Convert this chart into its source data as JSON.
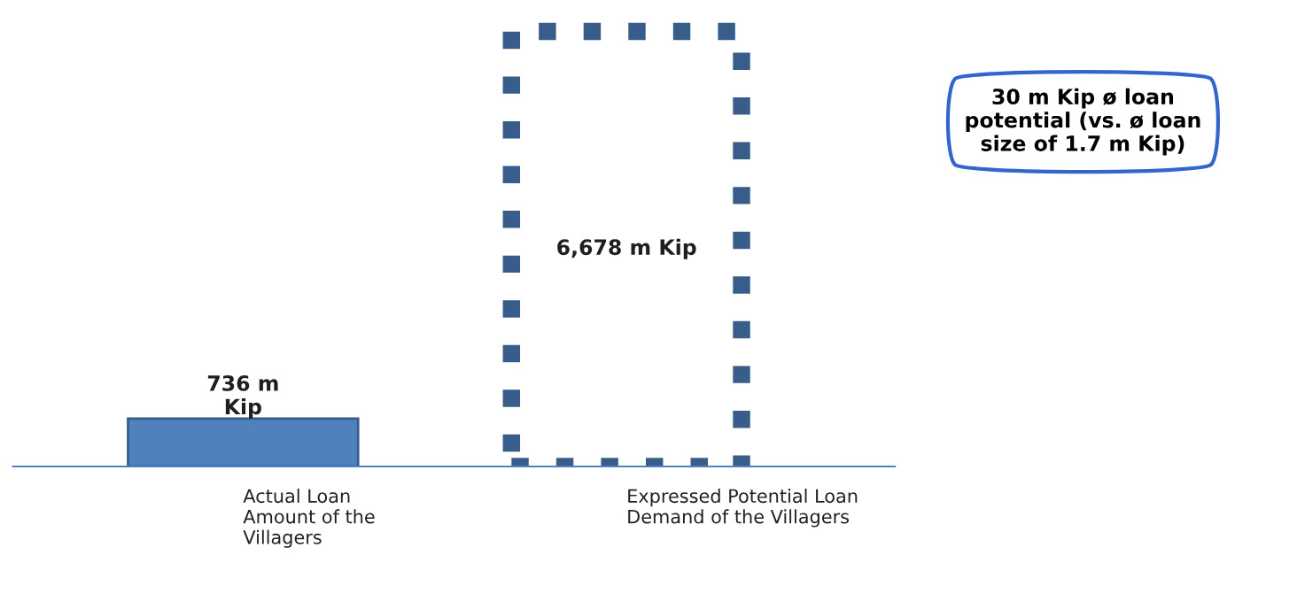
{
  "chart_data": {
    "type": "bar",
    "stacked": true,
    "tick_labels": "x",
    "data_labels": true,
    "categories": [
      "Actual Loan\nAmount of the\nVillagers",
      "Expressed Potential Loan\nDemand of the Villagers"
    ],
    "series": [
      {
        "values": [
          736,
          null
        ],
        "color": "#4f81bd",
        "value_labels": [
          "736 m\nKip",
          null
        ]
      },
      {
        "values": [
          null,
          6678
        ],
        "color": "#385d8a",
        "line_style": "dotted",
        "value_labels": [
          null,
          "6,678 m Kip"
        ]
      }
    ],
    "annotations": [
      "30 m Kip ø loan\npotential (vs. ø loan\nsize of 1.7 m Kip)"
    ]
  }
}
